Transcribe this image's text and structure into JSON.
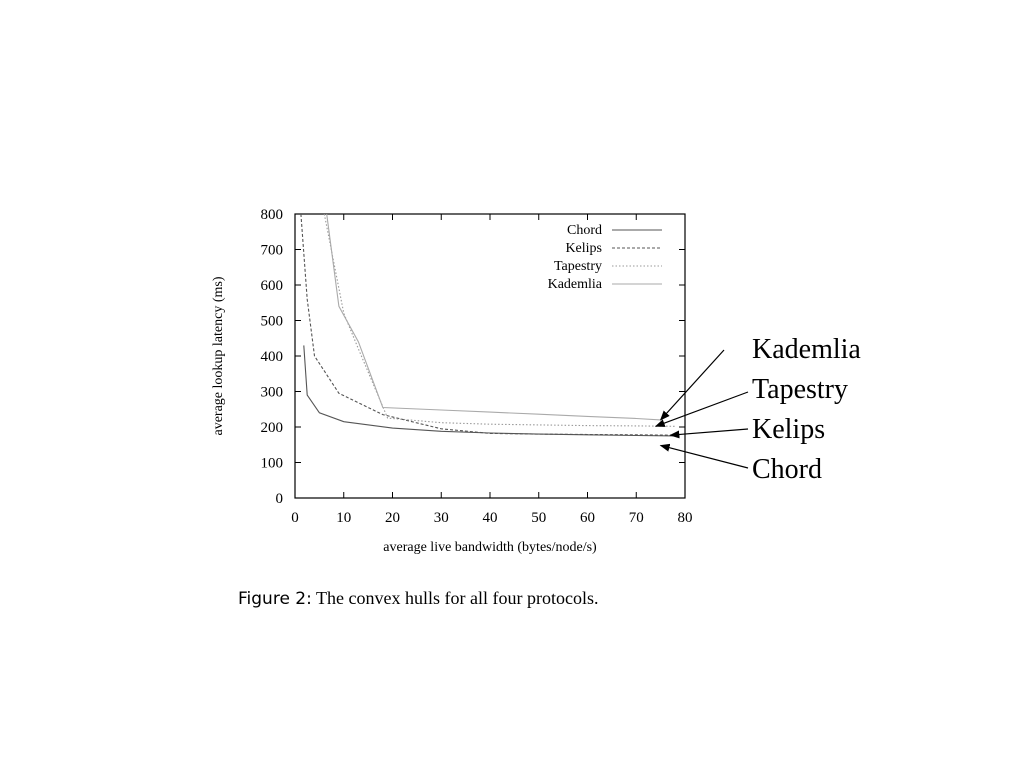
{
  "chart_data": {
    "type": "line",
    "title": "",
    "xlabel": "average live bandwidth (bytes/node/s)",
    "ylabel": "average lookup latency (ms)",
    "xlim": [
      0,
      80
    ],
    "ylim": [
      0,
      800
    ],
    "xticks": [
      0,
      10,
      20,
      30,
      40,
      50,
      60,
      70,
      80
    ],
    "yticks": [
      0,
      100,
      200,
      300,
      400,
      500,
      600,
      700,
      800
    ],
    "grid": false,
    "legend_position": "top-right",
    "series": [
      {
        "name": "Chord",
        "color": "#555555",
        "dash": "solid",
        "points": [
          [
            1.8,
            430
          ],
          [
            2.5,
            290
          ],
          [
            5,
            240
          ],
          [
            10,
            215
          ],
          [
            20,
            197
          ],
          [
            30,
            188
          ],
          [
            40,
            183
          ],
          [
            50,
            180
          ],
          [
            60,
            178
          ],
          [
            70,
            176
          ],
          [
            78,
            175
          ]
        ]
      },
      {
        "name": "Kelips",
        "color": "#555555",
        "dash": "dashed",
        "points": [
          [
            1.2,
            800
          ],
          [
            2.5,
            560
          ],
          [
            4,
            400
          ],
          [
            9,
            295
          ],
          [
            18,
            235
          ],
          [
            30,
            195
          ],
          [
            40,
            182
          ],
          [
            50,
            180
          ],
          [
            60,
            179
          ],
          [
            70,
            178
          ],
          [
            78,
            177
          ]
        ]
      },
      {
        "name": "Tapestry",
        "color": "#999999",
        "dash": "dotted",
        "points": [
          [
            6,
            800
          ],
          [
            10,
            520
          ],
          [
            13,
            420
          ],
          [
            19,
            225
          ],
          [
            30,
            212
          ],
          [
            40,
            208
          ],
          [
            50,
            206
          ],
          [
            60,
            204
          ],
          [
            70,
            203
          ],
          [
            78,
            202
          ]
        ]
      },
      {
        "name": "Kademlia",
        "color": "#aaaaaa",
        "dash": "solid",
        "points": [
          [
            6.5,
            800
          ],
          [
            9,
            540
          ],
          [
            13,
            440
          ],
          [
            18,
            255
          ],
          [
            30,
            248
          ],
          [
            40,
            242
          ],
          [
            50,
            236
          ],
          [
            60,
            230
          ],
          [
            70,
            224
          ],
          [
            75,
            220
          ]
        ]
      }
    ]
  },
  "caption": {
    "prefix": "Figure 2:",
    "text": "The convex hulls for all four protocols."
  },
  "callouts": [
    {
      "label": "Kademlia",
      "target": [
        75,
        220
      ]
    },
    {
      "label": "Tapestry",
      "target": [
        74,
        202
      ]
    },
    {
      "label": "Kelips",
      "target": [
        77,
        177
      ]
    },
    {
      "label": "Chord",
      "target": [
        75,
        148
      ]
    }
  ]
}
